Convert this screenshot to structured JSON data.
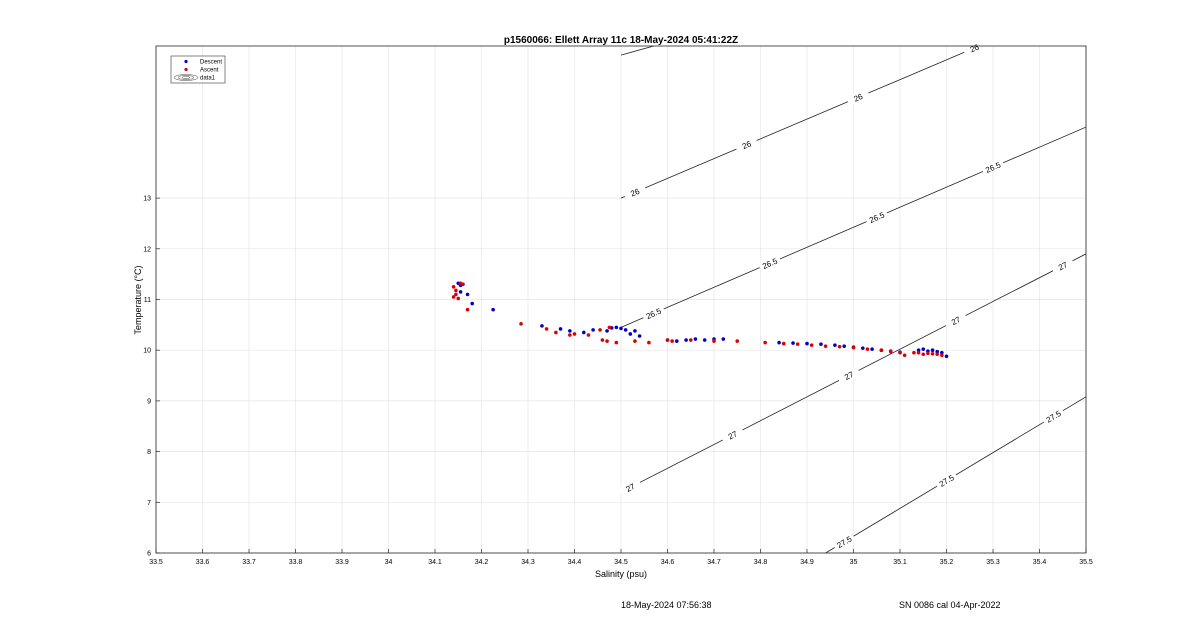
{
  "chart_data": {
    "type": "scatter",
    "title": "p1560066: Ellett Array 11c 18-May-2024 05:41:22Z",
    "xlabel": "Salinity (psu)",
    "ylabel": "Temperature (°C)",
    "xlim": [
      33.5,
      35.5
    ],
    "ylim": [
      6,
      16
    ],
    "xticks": [
      "33.5",
      "33.6",
      "33.7",
      "33.8",
      "33.9",
      "34",
      "34.1",
      "34.2",
      "34.3",
      "34.4",
      "34.5",
      "34.6",
      "34.7",
      "34.8",
      "34.9",
      "35",
      "35.1",
      "35.2",
      "35.3",
      "35.4",
      "35.5"
    ],
    "yticks": [
      "6",
      "7",
      "8",
      "9",
      "10",
      "11",
      "12",
      "13"
    ],
    "grid": true,
    "legend_position": "top-left",
    "legend": [
      "Descent",
      "Ascent",
      "data1"
    ],
    "colors": {
      "descent": "#0000cc",
      "ascent": "#dd0000",
      "contour": "#222222",
      "grid": "#e6e6e6"
    },
    "series": [
      {
        "name": "Descent",
        "x": [
          34.15,
          34.155,
          34.16,
          34.155,
          34.17,
          34.18,
          34.225,
          34.33,
          34.37,
          34.39,
          34.42,
          34.44,
          34.47,
          34.48,
          34.49,
          34.5,
          34.51,
          34.52,
          34.53,
          34.54,
          34.6,
          34.62,
          34.64,
          34.66,
          34.68,
          34.7,
          34.72,
          34.84,
          34.87,
          34.9,
          34.93,
          34.96,
          34.98,
          35.0,
          35.02,
          35.04,
          35.06,
          35.08,
          35.1,
          35.14,
          35.15,
          35.16,
          35.17,
          35.18,
          35.19,
          35.2
        ],
        "y": [
          11.32,
          11.28,
          11.3,
          11.15,
          11.1,
          10.92,
          10.8,
          10.48,
          10.42,
          10.38,
          10.35,
          10.4,
          10.38,
          10.44,
          10.45,
          10.43,
          10.4,
          10.32,
          10.38,
          10.28,
          10.2,
          10.18,
          10.2,
          10.22,
          10.2,
          10.22,
          10.22,
          10.15,
          10.14,
          10.13,
          10.12,
          10.1,
          10.08,
          10.06,
          10.04,
          10.02,
          10.0,
          9.98,
          9.96,
          10.0,
          10.02,
          9.98,
          10.0,
          9.97,
          9.95,
          9.88
        ]
      },
      {
        "name": "Ascent",
        "x": [
          34.14,
          34.145,
          34.14,
          34.15,
          34.155,
          34.16,
          34.17,
          34.145,
          34.285,
          34.34,
          34.36,
          34.39,
          34.4,
          34.43,
          34.455,
          34.46,
          34.47,
          34.475,
          34.49,
          34.53,
          34.56,
          34.6,
          34.61,
          34.65,
          34.7,
          34.75,
          34.81,
          34.85,
          34.88,
          34.91,
          34.94,
          34.97,
          35.0,
          35.03,
          35.06,
          35.08,
          35.1,
          35.11,
          35.13,
          35.14,
          35.15,
          35.16,
          35.17,
          35.18,
          35.19
        ],
        "y": [
          11.25,
          11.1,
          11.05,
          11.02,
          11.32,
          11.3,
          10.8,
          11.18,
          10.52,
          10.42,
          10.35,
          10.3,
          10.32,
          10.3,
          10.4,
          10.2,
          10.18,
          10.45,
          10.15,
          10.18,
          10.15,
          10.2,
          10.18,
          10.2,
          10.18,
          10.18,
          10.15,
          10.13,
          10.12,
          10.1,
          10.08,
          10.07,
          10.05,
          10.02,
          10.0,
          9.97,
          9.95,
          9.9,
          9.95,
          9.95,
          9.92,
          9.94,
          9.93,
          9.92,
          9.9
        ]
      }
    ],
    "contours": [
      {
        "level": "25.5",
        "x": [
          34.5,
          35.0
        ],
        "y": [
          15.82,
          17.1
        ],
        "labels": [
          {
            "text": "25.5",
            "x": 34.58
          }
        ]
      },
      {
        "level": "26",
        "x": [
          34.5,
          35.27
        ],
        "y": [
          13.0,
          16.0
        ],
        "labels": [
          {
            "text": "26",
            "x": 34.53
          },
          {
            "text": "26",
            "x": 34.77
          },
          {
            "text": "26",
            "x": 35.01
          },
          {
            "text": "26",
            "x": 35.26
          }
        ]
      },
      {
        "level": "26.5",
        "x": [
          34.5,
          35.5
        ],
        "y": [
          10.45,
          14.4
        ],
        "labels": [
          {
            "text": "26.5",
            "x": 34.57
          },
          {
            "text": "26.5",
            "x": 34.82
          },
          {
            "text": "26.5",
            "x": 35.05
          },
          {
            "text": "26.5",
            "x": 35.3
          }
        ]
      },
      {
        "level": "27",
        "x": [
          34.5,
          35.5
        ],
        "y": [
          7.2,
          11.9
        ],
        "labels": [
          {
            "text": "27",
            "x": 34.52
          },
          {
            "text": "27",
            "x": 34.74
          },
          {
            "text": "27",
            "x": 34.99
          },
          {
            "text": "27",
            "x": 35.22
          },
          {
            "text": "27",
            "x": 35.45
          }
        ]
      },
      {
        "level": "27.5",
        "x": [
          34.94,
          35.5
        ],
        "y": [
          6.0,
          9.08
        ],
        "labels": [
          {
            "text": "27.5",
            "x": 34.98
          },
          {
            "text": "27.5",
            "x": 35.2
          },
          {
            "text": "27.5",
            "x": 35.43
          }
        ]
      }
    ]
  },
  "footer": {
    "left": "18-May-2024 07:56:38",
    "right": "SN 0086 cal 04-Apr-2022"
  }
}
